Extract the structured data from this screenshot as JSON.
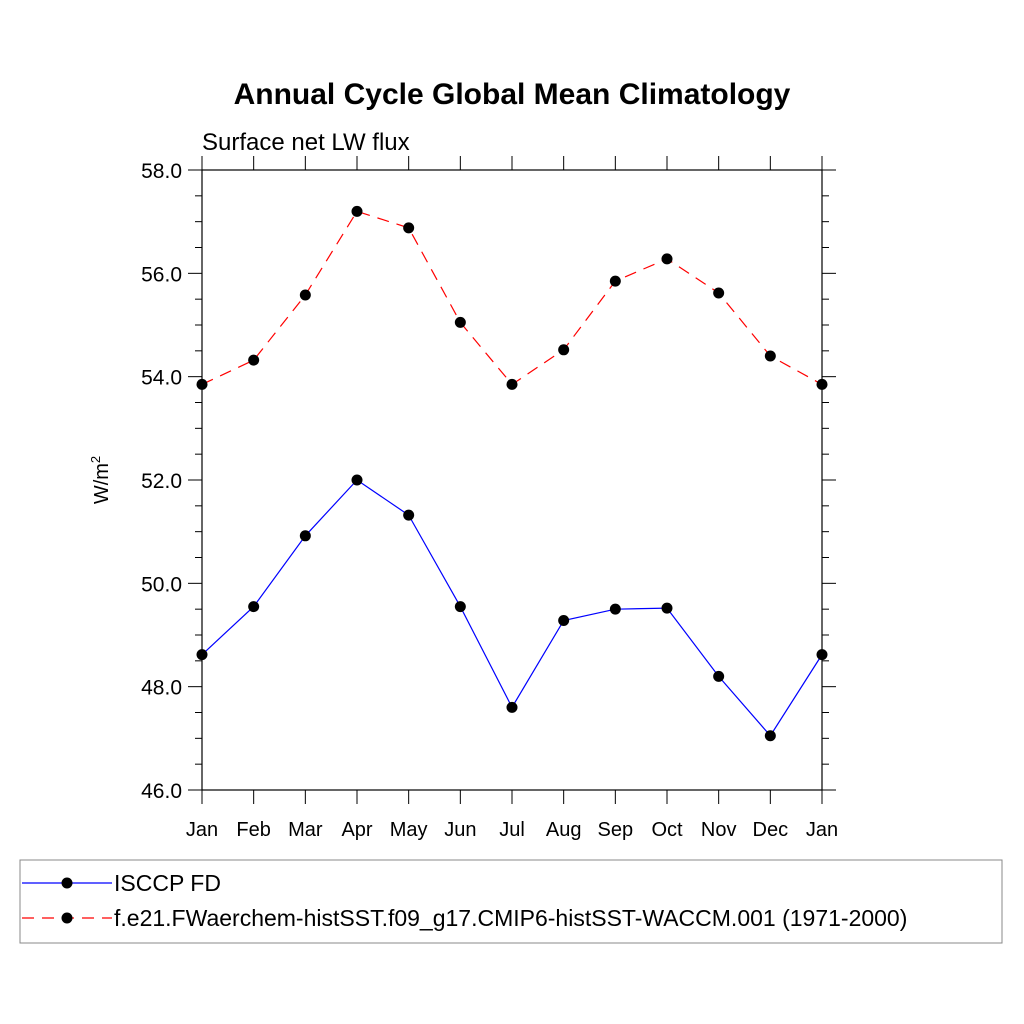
{
  "chart_data": {
    "type": "line",
    "title": "Annual Cycle Global Mean Climatology",
    "subtitle": "Surface net LW flux",
    "xlabel": "",
    "ylabel": "W/m",
    "ylabel_superscript": "2",
    "ylim": [
      46.0,
      58.0
    ],
    "yticks": [
      46.0,
      48.0,
      50.0,
      52.0,
      54.0,
      56.0,
      58.0
    ],
    "y_minor_step": 0.5,
    "grid": false,
    "categories": [
      "Jan",
      "Feb",
      "Mar",
      "Apr",
      "May",
      "Jun",
      "Jul",
      "Aug",
      "Sep",
      "Oct",
      "Nov",
      "Dec",
      "Jan"
    ],
    "series": [
      {
        "name": "ISCCP FD",
        "color": "#0000ff",
        "line_style": "solid",
        "values": [
          48.62,
          49.55,
          50.92,
          52.0,
          51.32,
          49.55,
          47.6,
          49.28,
          49.5,
          49.52,
          48.2,
          47.05,
          48.62
        ]
      },
      {
        "name": "f.e21.FWaerchem-histSST.f09_g17.CMIP6-histSST-WACCM.001 (1971-2000)",
        "color": "#ff0000",
        "line_style": "dashed",
        "values": [
          53.85,
          54.32,
          55.58,
          57.2,
          56.88,
          55.05,
          53.85,
          54.52,
          55.85,
          56.28,
          55.62,
          54.4,
          53.85
        ]
      }
    ],
    "marker_color": "#000000",
    "legend_position": "bottom"
  }
}
